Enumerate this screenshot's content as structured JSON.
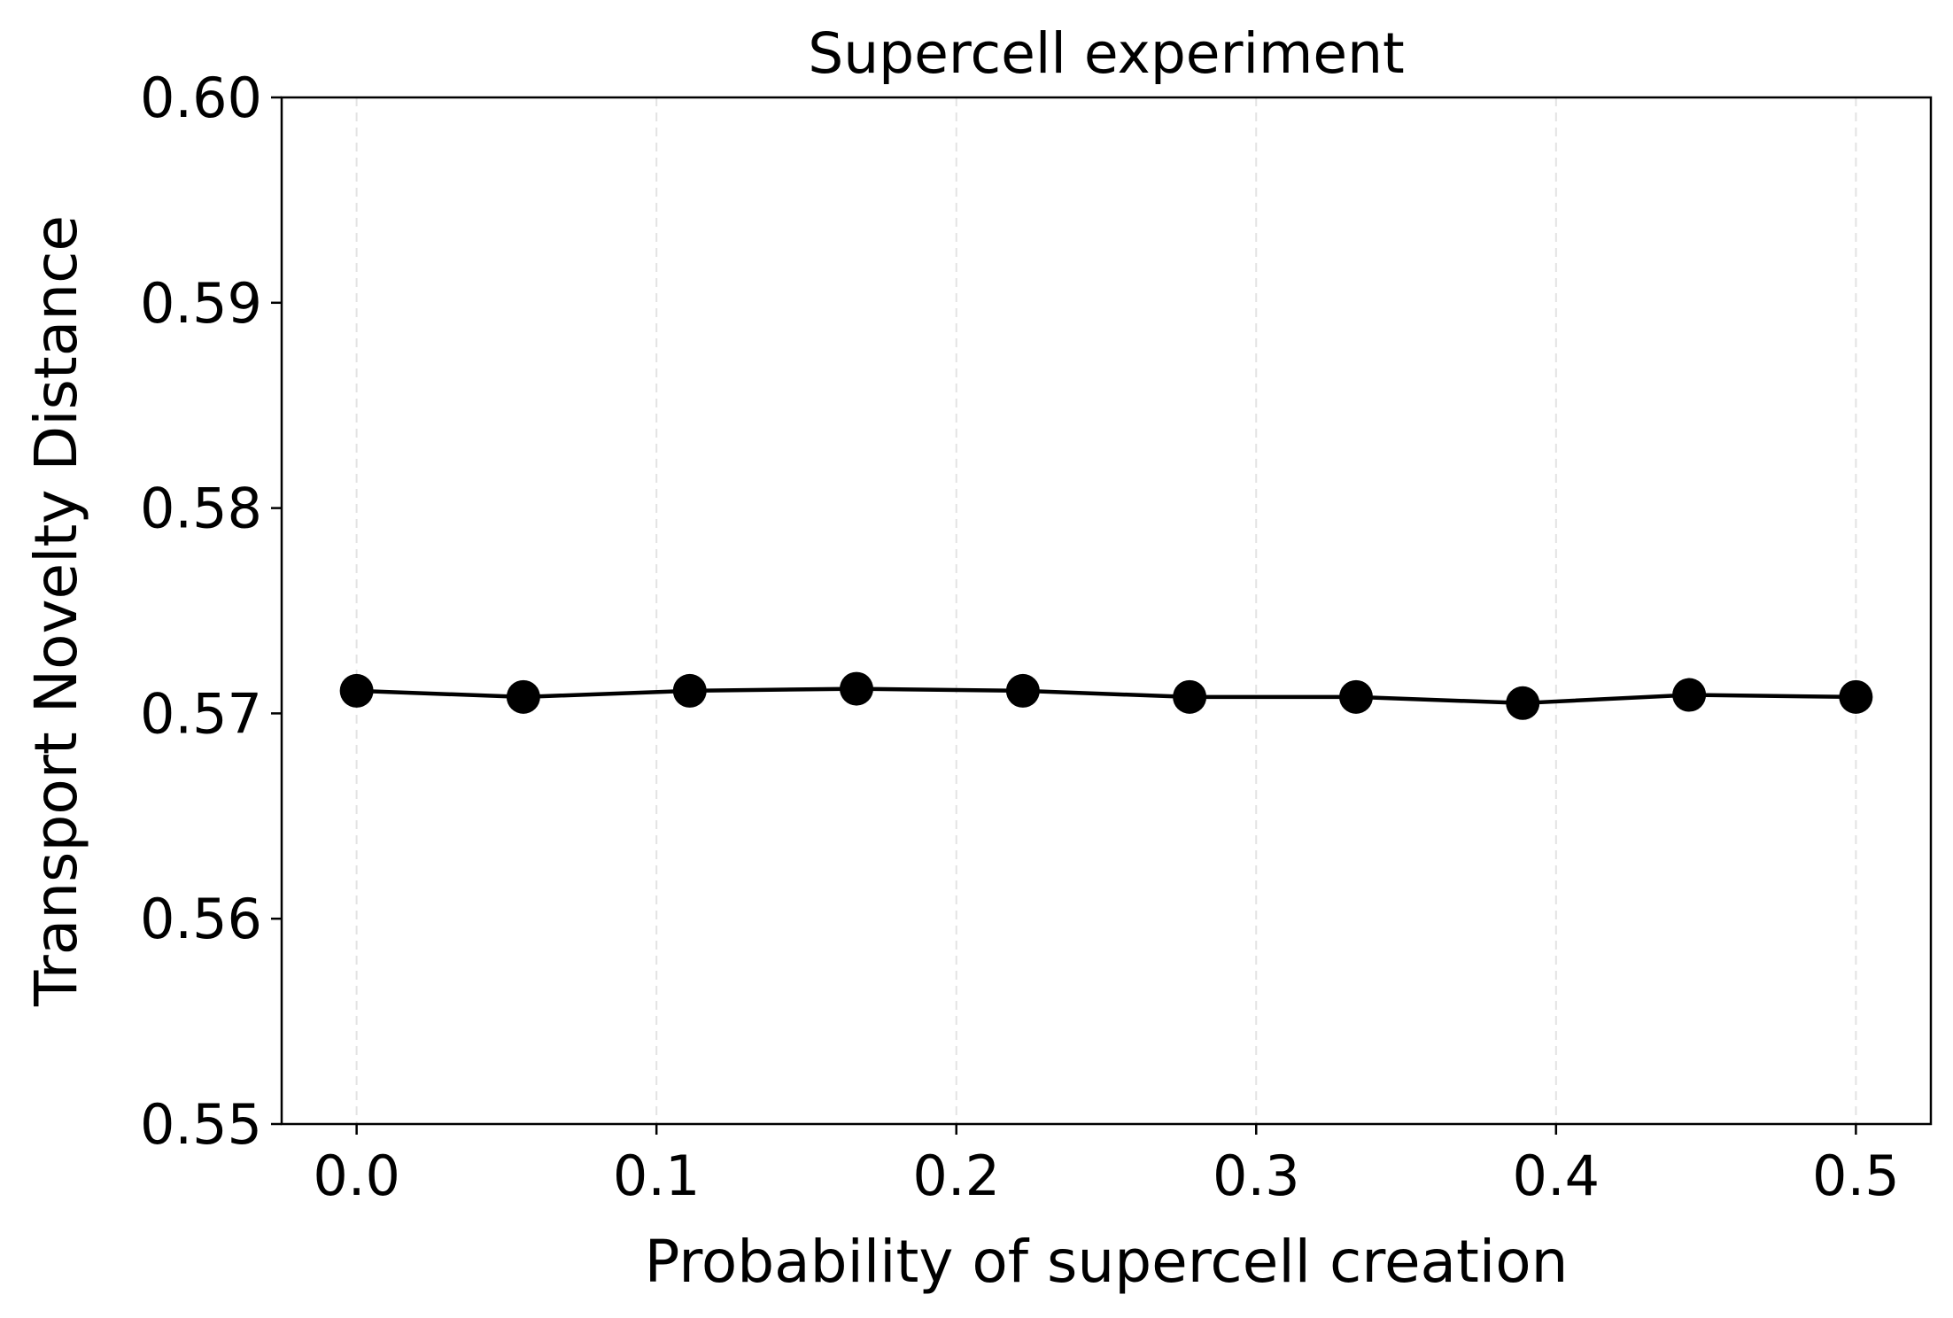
{
  "chart_data": {
    "type": "line",
    "title": "Supercell experiment",
    "xlabel": "Probability of supercell creation",
    "ylabel": "Transport Novelty Distance",
    "xlim": [
      -0.025,
      0.525
    ],
    "ylim": [
      0.55,
      0.6
    ],
    "xticks": [
      0.0,
      0.1,
      0.2,
      0.3,
      0.4,
      0.5
    ],
    "xtick_labels": [
      "0.0",
      "0.1",
      "0.2",
      "0.3",
      "0.4",
      "0.5"
    ],
    "yticks": [
      0.55,
      0.56,
      0.57,
      0.58,
      0.59,
      0.6
    ],
    "ytick_labels": [
      "0.55",
      "0.56",
      "0.57",
      "0.58",
      "0.59",
      "0.60"
    ],
    "grid": "x-only, dashed, light gray",
    "legend": "none",
    "series": [
      {
        "color": "#000000",
        "marker": "circle",
        "x": [
          0.0,
          0.0556,
          0.1111,
          0.1667,
          0.2222,
          0.2778,
          0.3333,
          0.3889,
          0.4444,
          0.5
        ],
        "y": [
          0.5711,
          0.5708,
          0.5711,
          0.5712,
          0.5711,
          0.5708,
          0.5708,
          0.5705,
          0.5709,
          0.5708
        ]
      }
    ]
  }
}
